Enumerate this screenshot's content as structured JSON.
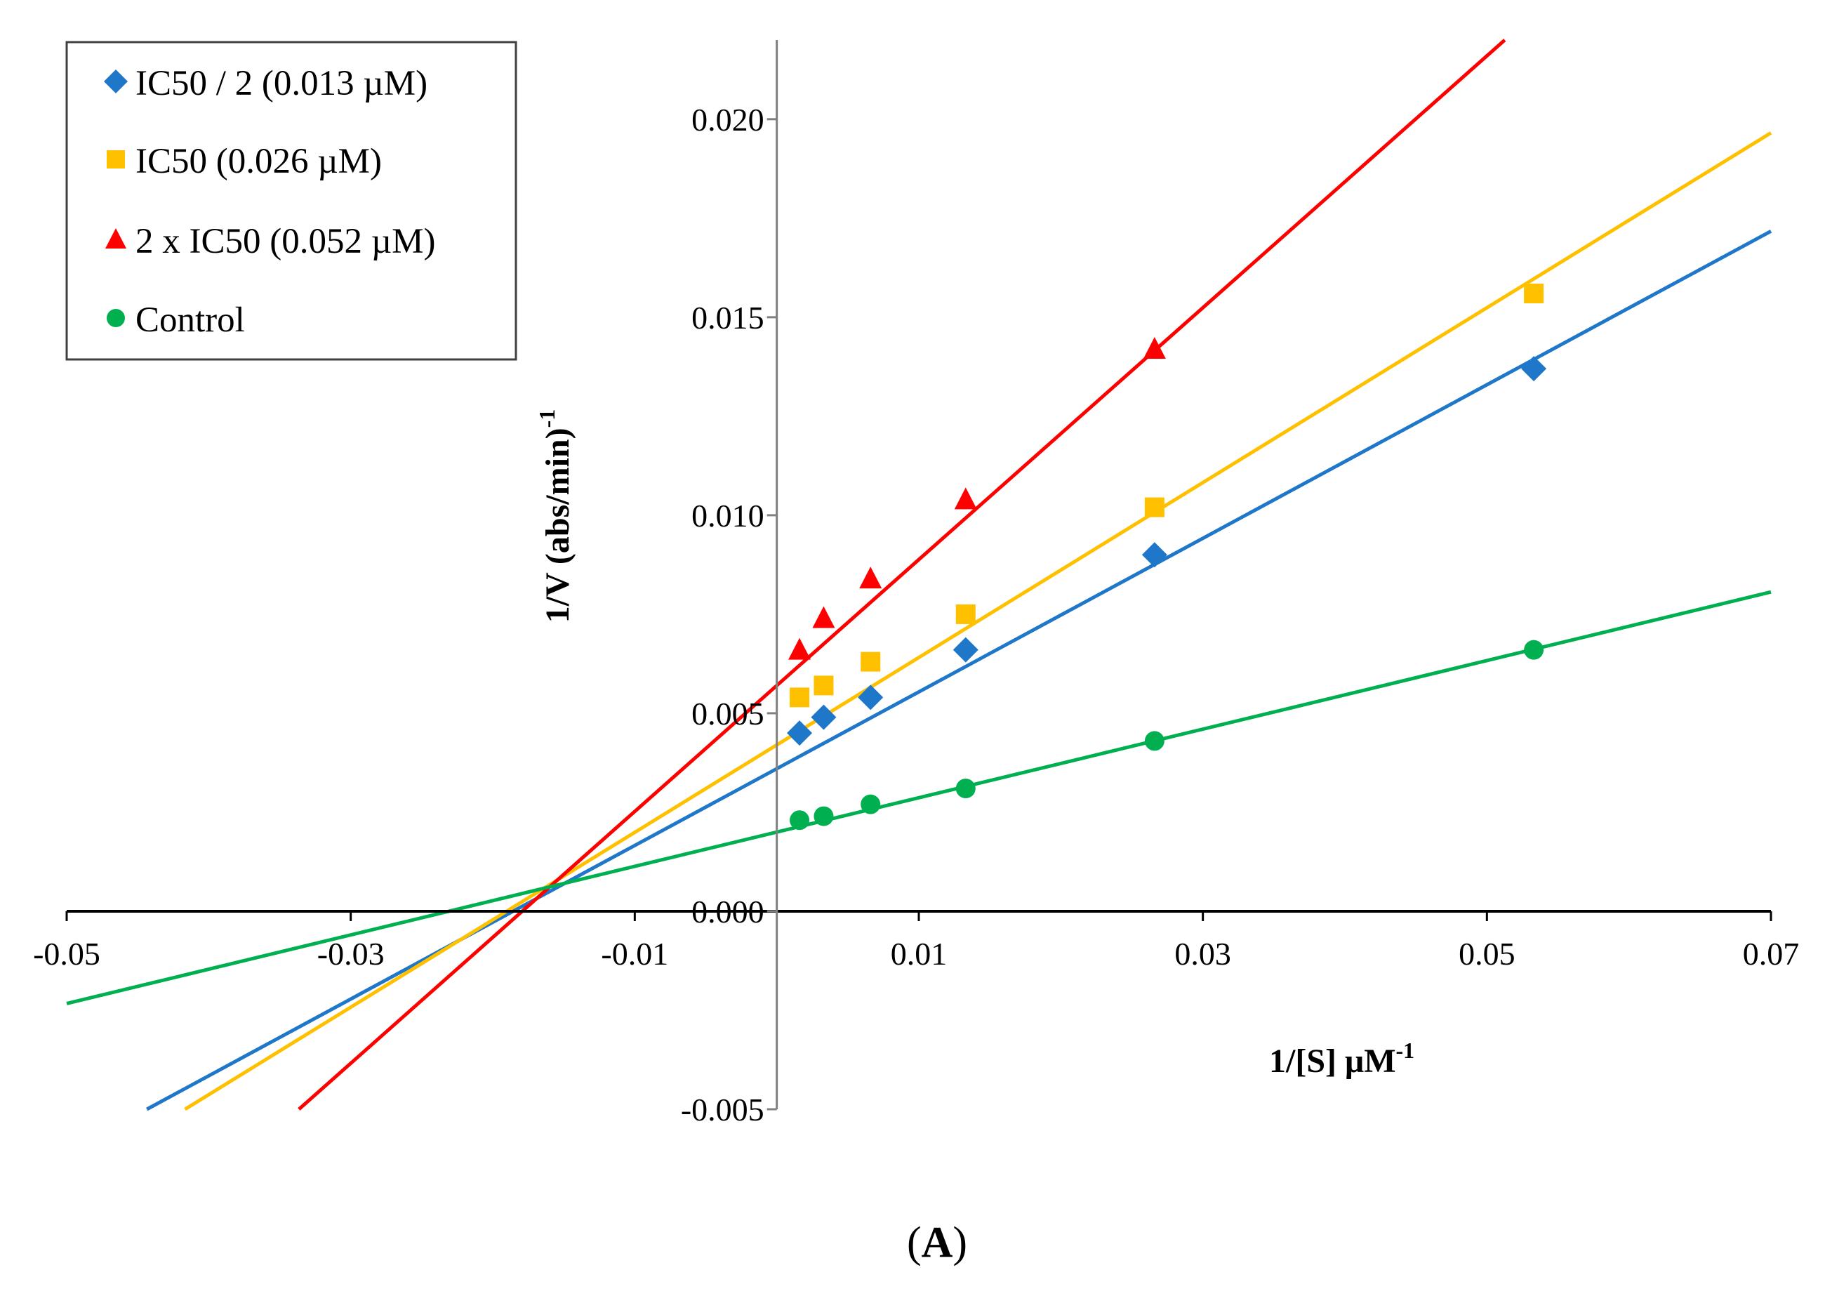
{
  "chart_data": {
    "type": "scatter",
    "title": "",
    "panel_label_text": "A",
    "xlabel": {
      "text": "1/[S] μM",
      "superscript": "-1"
    },
    "ylabel": {
      "text": "1/V (abs/min)",
      "superscript": "-1"
    },
    "xlim": [
      -0.05,
      0.07
    ],
    "ylim": [
      -0.005,
      0.022
    ],
    "grid": false,
    "legend_position": "top-left",
    "x_tick_values": [
      -0.05,
      -0.03,
      -0.01,
      0.01,
      0.03,
      0.05,
      0.07
    ],
    "x_tick_labels": [
      "-0.05",
      "-0.03",
      "-0.01",
      "0.01",
      "0.03",
      "0.05",
      "0.07"
    ],
    "y_tick_values": [
      -0.005,
      0.0,
      0.005,
      0.01,
      0.015,
      0.02
    ],
    "y_tick_labels": [
      "-0.005",
      "0.000",
      "0.005",
      "0.010",
      "0.015",
      "0.020"
    ],
    "x": [
      0.0016,
      0.0033,
      0.0066,
      0.0133,
      0.0266,
      0.0533
    ],
    "series": [
      {
        "name": "IC50 / 2 (0.013 µM)",
        "marker": "diamond",
        "color": "#1F77C9",
        "values": [
          0.0045,
          0.0049,
          0.0054,
          0.0066,
          0.009,
          0.0137
        ],
        "trendline": {
          "slope": 0.1939,
          "intercept": 0.0036
        }
      },
      {
        "name": "IC50 (0.026 µM)",
        "marker": "square",
        "color": "#FFC000",
        "values": [
          0.0054,
          0.0057,
          0.0063,
          0.0075,
          0.0102,
          0.0156
        ],
        "trendline": {
          "slope": 0.2208,
          "intercept": 0.0042
        }
      },
      {
        "name": "2 x IC50 (0.052 µM)",
        "marker": "triangle",
        "color": "#FF0000",
        "values": [
          0.0066,
          0.0074,
          0.0084,
          0.0104,
          0.0142,
          null
        ],
        "trendline": {
          "slope": 0.318,
          "intercept": 0.0057
        }
      },
      {
        "name": "Control",
        "marker": "circle",
        "color": "#00B050",
        "values": [
          0.0023,
          0.0024,
          0.0027,
          0.0031,
          0.0043,
          0.0066
        ],
        "trendline": {
          "slope": 0.0866,
          "intercept": 0.002
        }
      }
    ]
  }
}
